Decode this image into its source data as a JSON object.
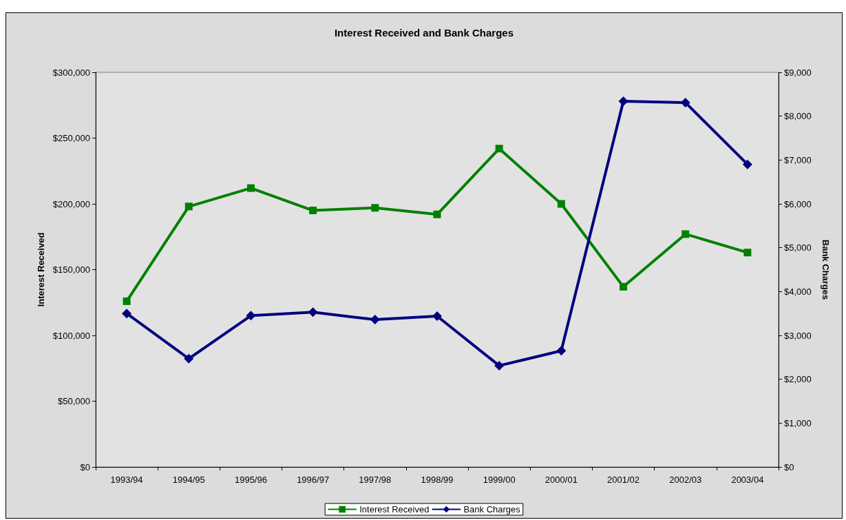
{
  "chart_data": {
    "type": "line",
    "title": "Interest Received and Bank Charges",
    "ylabel": "Interest Received",
    "y2label": "Bank Charges",
    "categories": [
      "1993/94",
      "1994/95",
      "1995/96",
      "1996/97",
      "1997/98",
      "1998/99",
      "1999/00",
      "2000/01",
      "2001/02",
      "2002/03",
      "2003/04"
    ],
    "series": [
      {
        "name": "Interest Received",
        "color": "#008000",
        "marker": "square",
        "values": [
          126000,
          198000,
          212000,
          195000,
          197000,
          192000,
          242000,
          200000,
          137000,
          177000,
          163000
        ]
      },
      {
        "name": "Bank Charges",
        "color": "#000080",
        "marker": "diamond",
        "axis": "y2",
        "values": [
          3500,
          2470,
          3450,
          3530,
          3360,
          3440,
          2310,
          2650,
          8340,
          8310,
          6900
        ]
      }
    ],
    "ylim": [
      0,
      300000
    ],
    "yticks": [
      {
        "value": 0,
        "label": "$0"
      },
      {
        "value": 50000,
        "label": "$50,000"
      },
      {
        "value": 100000,
        "label": "$100,000"
      },
      {
        "value": 150000,
        "label": "$150,000"
      },
      {
        "value": 200000,
        "label": "$200,000"
      },
      {
        "value": 250000,
        "label": "$250,000"
      },
      {
        "value": 300000,
        "label": "$300,000"
      }
    ],
    "y2lim": [
      0,
      9000
    ],
    "y2ticks": [
      {
        "value": 0,
        "label": "$0"
      },
      {
        "value": 1000,
        "label": "$1,000"
      },
      {
        "value": 2000,
        "label": "$2,000"
      },
      {
        "value": 3000,
        "label": "$3,000"
      },
      {
        "value": 4000,
        "label": "$4,000"
      },
      {
        "value": 5000,
        "label": "$5,000"
      },
      {
        "value": 6000,
        "label": "$6,000"
      },
      {
        "value": 7000,
        "label": "$7,000"
      },
      {
        "value": 8000,
        "label": "$8,000"
      },
      {
        "value": 9000,
        "label": "$9,000"
      }
    ],
    "grid": false,
    "legend": "bottom"
  }
}
